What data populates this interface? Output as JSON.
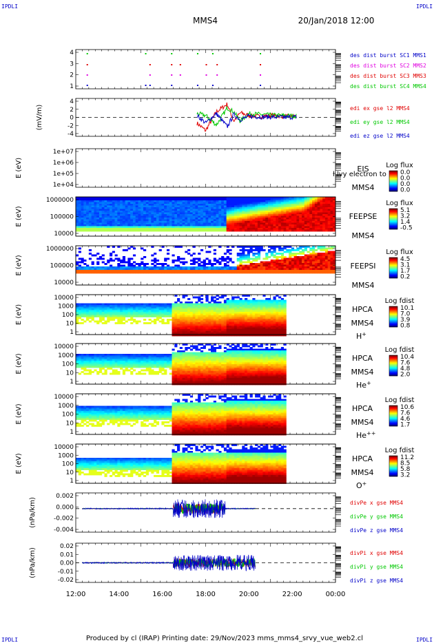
{
  "page": {
    "corner_tl": "IPDLI",
    "corner_tr": "IPDLI",
    "corner_bl": "IPDLI",
    "corner_br": "IPDLI",
    "spacecraft": "MMS4",
    "date_time": "20/Jan/2018 12:00",
    "footer": "Produced by cl (IRAP)   Printing date: 29/Nov/2023   mms_mms4_srvy_vue_web2.cl"
  },
  "colors": {
    "mms1": "#0000c8",
    "mms2": "#e000e0",
    "mms3": "#e00000",
    "mms4": "#00c800",
    "x": "#e00000",
    "y": "#00c800",
    "z": "#0000c8"
  },
  "chart_data": [
    {
      "type": "scatter",
      "y_ticks": [
        "4",
        "3",
        "2",
        "1"
      ],
      "ylim": [
        0.5,
        4.5
      ],
      "legend": [
        "des dist burst SC1 MMS1",
        "des dist burst SC2 MMS2",
        "des dist burst SC3 MMS3",
        "des dist burst SC4 MMS4"
      ],
      "series": [
        {
          "values_x_hours": [
            12.5,
            15.2,
            15.4,
            16.4,
            17.6,
            18.3,
            20.5
          ]
        },
        {
          "values_x_hours": [
            12.5,
            15.4,
            16.4,
            16.8,
            18.0,
            18.5,
            20.5
          ]
        },
        {
          "values_x_hours": [
            12.5,
            15.4,
            16.4,
            16.8,
            18.0,
            18.5,
            20.5
          ]
        },
        {
          "values_x_hours": [
            12.5,
            15.2,
            16.4,
            17.6,
            18.3,
            20.5
          ]
        }
      ]
    },
    {
      "type": "line",
      "ylabel": "(mV/m)",
      "y_ticks": [
        "4",
        "2",
        "0",
        "-2",
        "-4"
      ],
      "ylim": [
        -5,
        5
      ],
      "legend": [
        "edi ex gse l2 MMS4",
        "edi ey gse l2 MMS4",
        "edi ez gse l2 MMS4"
      ],
      "x_hours": [
        17.6,
        18.0,
        18.5,
        19.0,
        19.3,
        19.6,
        20.0,
        20.5,
        21.0,
        21.5,
        22.2
      ],
      "series": [
        {
          "values": [
            -1.5,
            -3.5,
            1.5,
            3.5,
            -1.0,
            1.2,
            0.5,
            0.2,
            0.5,
            0.3,
            0.2
          ]
        },
        {
          "values": [
            1.0,
            0.5,
            -2.0,
            2.5,
            1.5,
            -1.0,
            1.0,
            0.8,
            0.6,
            0.5,
            0.4
          ]
        },
        {
          "values": [
            0.5,
            -1.5,
            1.0,
            -2.5,
            0.8,
            -0.6,
            0.3,
            0.1,
            0.1,
            0.0,
            0.1
          ]
        }
      ]
    },
    {
      "type": "heatmap",
      "ylabel": "E (eV)",
      "y_ticks": [
        "1e+07",
        "1e+06",
        "1e+05",
        "1e+04"
      ],
      "inst": "EIS",
      "sc": "MMS4",
      "overlay_text": "l lvy electron to",
      "cb_title": "Log flux",
      "cb_ticks": [
        "0.0",
        "0.0",
        "0.0",
        "0.0"
      ]
    },
    {
      "type": "heatmap",
      "ylabel": "E (eV)",
      "y_ticks": [
        "1000000",
        "100000",
        "10000"
      ],
      "inst": "FEEPSE",
      "sc": "MMS4",
      "cb_title": "Log flux",
      "cb_ticks": [
        "5.1",
        "3.2",
        "1.4",
        "-0.5"
      ]
    },
    {
      "type": "heatmap",
      "ylabel": "E (eV)",
      "y_ticks": [
        "1000000",
        "100000",
        "10000"
      ],
      "inst": "FEEPSI",
      "sc": "MMS4",
      "cb_title": "Log flux",
      "cb_ticks": [
        "4.5",
        "3.1",
        "1.7",
        "0.2"
      ]
    },
    {
      "type": "heatmap",
      "ylabel": "E (eV)",
      "y_ticks": [
        "10000",
        "1000",
        "100",
        "10",
        "1"
      ],
      "inst": "HPCA",
      "sc": "MMS4",
      "species": "H",
      "charge": "+",
      "cb_title": "Log fdist",
      "cb_ticks": [
        "10.1",
        "7.0",
        "3.9",
        "0.8"
      ]
    },
    {
      "type": "heatmap",
      "ylabel": "E (eV)",
      "y_ticks": [
        "10000",
        "1000",
        "100",
        "10",
        "1"
      ],
      "inst": "HPCA",
      "sc": "MMS4",
      "species": "He",
      "charge": "+",
      "cb_title": "Log fdist",
      "cb_ticks": [
        "10.4",
        "7.6",
        "4.8",
        "2.0"
      ]
    },
    {
      "type": "heatmap",
      "ylabel": "E (eV)",
      "y_ticks": [
        "10000",
        "1000",
        "100",
        "10",
        "1"
      ],
      "inst": "HPCA",
      "sc": "MMS4",
      "species": "He",
      "charge": "++",
      "cb_title": "Log fdist",
      "cb_ticks": [
        "10.6",
        "7.6",
        "4.6",
        "1.7"
      ]
    },
    {
      "type": "heatmap",
      "ylabel": "E (eV)",
      "y_ticks": [
        "10000",
        "1000",
        "100",
        "10",
        "1"
      ],
      "inst": "HPCA",
      "sc": "MMS4",
      "species": "O",
      "charge": "+",
      "cb_title": "Log fdist",
      "cb_ticks": [
        "11.2",
        "8.5",
        "5.8",
        "3.2"
      ]
    },
    {
      "type": "line",
      "ylabel": "(nPa/km)",
      "y_ticks": [
        "0.002",
        "0.000",
        "-0.002",
        "-0.004"
      ],
      "ylim": [
        -0.0045,
        0.003
      ],
      "legend": [
        "divPe x gse MMS4",
        "divPe y gse MMS4",
        "divPe z gse MMS4"
      ],
      "noise": {
        "start_h": 12.3,
        "end_h": 20.3,
        "active_start_h": 16.5,
        "active_end_h": 18.9,
        "amp_quiet": 0.0001,
        "amp_active": 0.0018
      }
    },
    {
      "type": "line",
      "ylabel": "(nPa/km)",
      "y_ticks": [
        "0.02",
        "0.01",
        "0.00",
        "-0.01",
        "-0.02"
      ],
      "ylim": [
        -0.022,
        0.022
      ],
      "legend": [
        "divPi x gse MMS4",
        "divPi y gse MMS4",
        "divPi z gse MMS4"
      ],
      "noise": {
        "start_h": 12.3,
        "end_h": 20.3,
        "active_start_h": 16.5,
        "active_end_h": 20.3,
        "amp_quiet": 0.0007,
        "amp_active": 0.009
      }
    }
  ],
  "x_axis": {
    "tick_labels": [
      "12:00",
      "14:00",
      "16:00",
      "18:00",
      "20:00",
      "22:00",
      "00:00"
    ],
    "range_hours": [
      12,
      24
    ]
  }
}
